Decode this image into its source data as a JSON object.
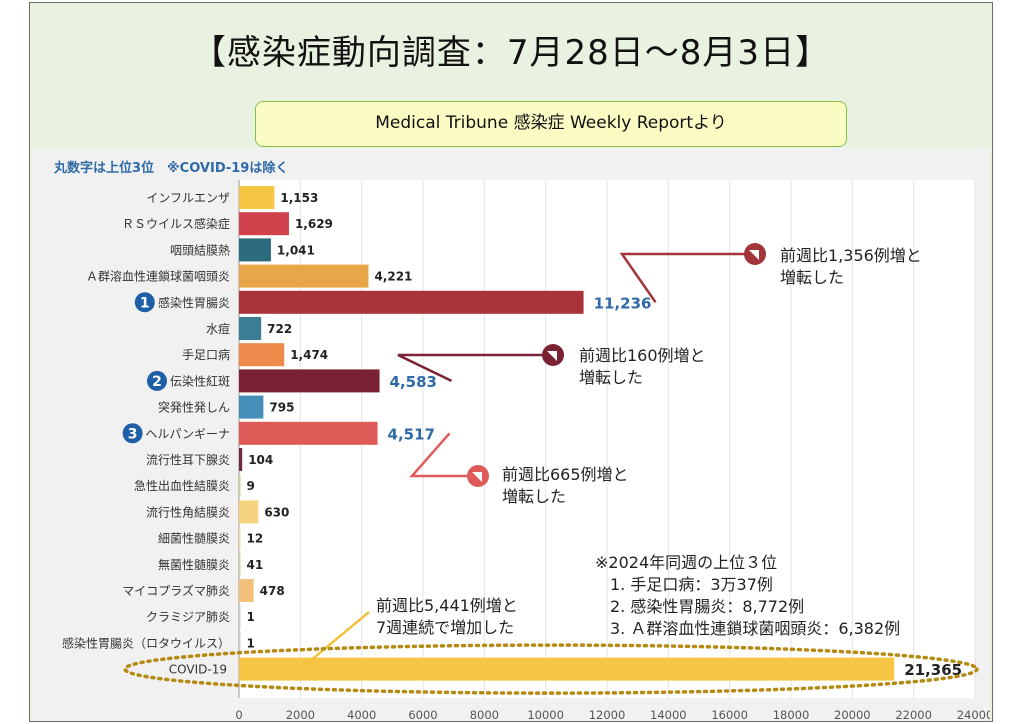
{
  "page": {
    "title": "【感染症動向調査：7月28日～8月3日】",
    "source": "Medical Tribune 感染症 Weekly Reportより",
    "note": "丸数字は上位3位　※COVID-19は除く"
  },
  "chart_data": {
    "type": "bar",
    "orientation": "horizontal",
    "categories": [
      "インフルエンザ",
      "ＲＳウイルス感染症",
      "咽頭結膜熱",
      "Ａ群溶血性連鎖球菌咽頭炎",
      "感染性胃腸炎",
      "水痘",
      "手足口病",
      "伝染性紅斑",
      "突発性発しん",
      "ヘルパンギーナ",
      "流行性耳下腺炎",
      "急性出血性結膜炎",
      "流行性角結膜炎",
      "細菌性髄膜炎",
      "無菌性髄膜炎",
      "マイコプラズマ肺炎",
      "クラミジア肺炎",
      "感染性胃腸炎（ロタウイルス）",
      "COVID-19"
    ],
    "values": [
      1153,
      1629,
      1041,
      4221,
      11236,
      722,
      1474,
      4583,
      795,
      4517,
      104,
      9,
      630,
      12,
      41,
      478,
      1,
      1,
      21365
    ],
    "value_labels": [
      "1,153",
      "1,629",
      "1,041",
      "4,221",
      "11,236",
      "722",
      "1,474",
      "4,583",
      "795",
      "4,517",
      "104",
      "9",
      "630",
      "12",
      "41",
      "478",
      "1",
      "1",
      "21,365"
    ],
    "colors": [
      "#f6c544",
      "#d0414b",
      "#2b6b7c",
      "#e8a649",
      "#a8343a",
      "#3c7d96",
      "#ee8a4b",
      "#7a2233",
      "#4590bb",
      "#de5b57",
      "#6e2b3e",
      "#cfd08f",
      "#f6d47f",
      "#f2d9a6",
      "#d3d2a2",
      "#f3c17c",
      "#cccccc",
      "#cccccc",
      "#f6c544"
    ],
    "ranks": [
      {
        "index": 4,
        "label": "1"
      },
      {
        "index": 7,
        "label": "2"
      },
      {
        "index": 9,
        "label": "3"
      }
    ],
    "rank_color": "#1f5fa8",
    "xlim": [
      0,
      24000
    ],
    "xticks": [
      0,
      2000,
      4000,
      6000,
      8000,
      10000,
      12000,
      14000,
      16000,
      18000,
      20000,
      22000,
      24000
    ],
    "grid": true,
    "annotations": [
      {
        "target": 4,
        "lines": [
          "前週比1,356例増と",
          "増転した"
        ],
        "color": "#a3343a"
      },
      {
        "target": 7,
        "lines": [
          "前週比160例増と",
          "増転した"
        ],
        "color": "#7a2233"
      },
      {
        "target": 9,
        "lines": [
          "前週比665例増と",
          "増転した"
        ],
        "color": "#de5b57"
      },
      {
        "target": 18,
        "lines": [
          "前週比5,441例増と",
          "7週連続で増加した"
        ],
        "color": "#f2c23f"
      }
    ],
    "last_year": {
      "title": "※2024年同週の上位３位",
      "items": [
        "1. 手足口病：3万37例",
        "2. 感染性胃腸炎：8,772例",
        "3. Ａ群溶血性連鎖球菌咽頭炎：6,382例"
      ]
    },
    "highlight": {
      "target": 18,
      "style": "dotted-ellipse",
      "color": "#b58a12"
    }
  }
}
